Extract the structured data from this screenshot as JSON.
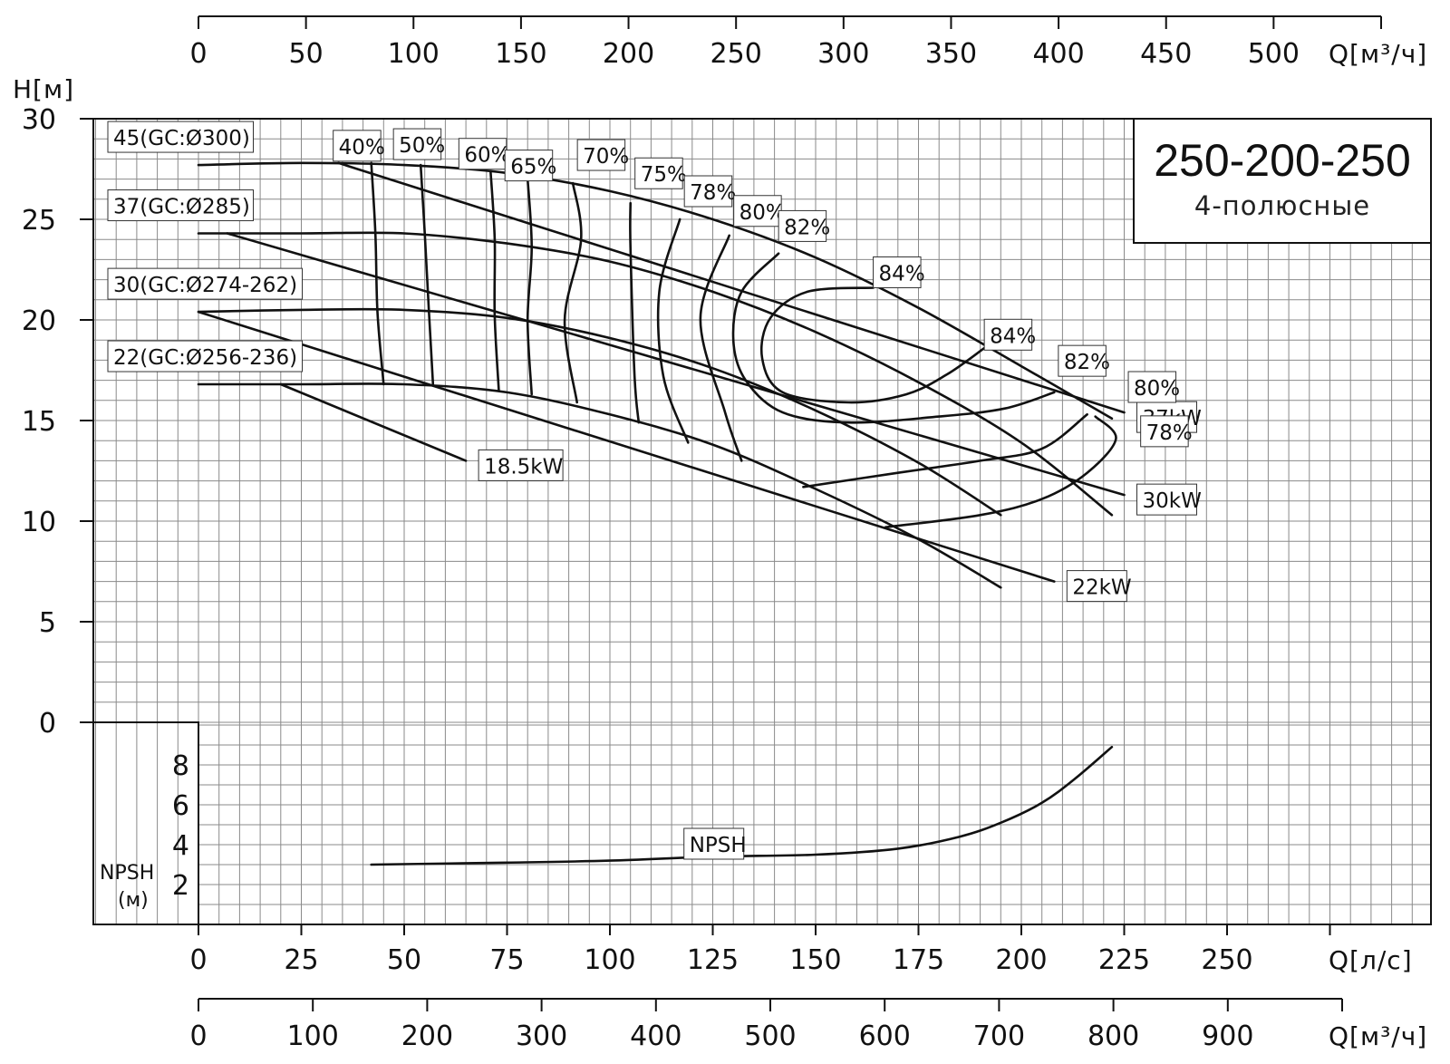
{
  "chart_data": {
    "type": "line",
    "title": "250-200-250",
    "subtitle": "4-полюсные",
    "ylabel": "H[м]",
    "npsh_label_line1": "NPSH",
    "npsh_label_line2": "(м)",
    "x_ls_label": "Q[л/с]",
    "x_m3h_label": "Q[м³/ч]",
    "x_top_label": "Q[м³/ч]",
    "ylim": [
      0,
      30
    ],
    "xlim_ls": [
      0,
      300
    ],
    "grid": true,
    "y_ticks": [
      "0",
      "5",
      "10",
      "15",
      "20",
      "25",
      "30"
    ],
    "npsh_ticks": [
      "2",
      "4",
      "6",
      "8"
    ],
    "x_ls_ticks": [
      "0",
      "25",
      "50",
      "75",
      "100",
      "125",
      "150",
      "175",
      "200",
      "225",
      "250"
    ],
    "x_m3h_ticks": [
      "0",
      "100",
      "200",
      "300",
      "400",
      "500",
      "600",
      "700",
      "800",
      "900"
    ],
    "x_top_ticks": [
      "0",
      "50",
      "100",
      "150",
      "200",
      "250",
      "300",
      "350",
      "400",
      "450",
      "500"
    ],
    "impellers": [
      {
        "name": "45(GC:Ø300)",
        "points": [
          [
            0,
            27.7
          ],
          [
            25,
            27.8
          ],
          [
            50,
            27.7
          ],
          [
            75,
            27.3
          ],
          [
            100,
            26.4
          ],
          [
            125,
            25.0
          ],
          [
            150,
            23.1
          ],
          [
            175,
            20.6
          ],
          [
            200,
            17.7
          ],
          [
            222,
            15.1
          ]
        ]
      },
      {
        "name": "37(GC:Ø285)",
        "points": [
          [
            0,
            24.3
          ],
          [
            25,
            24.3
          ],
          [
            50,
            24.3
          ],
          [
            75,
            23.8
          ],
          [
            100,
            22.9
          ],
          [
            125,
            21.4
          ],
          [
            150,
            19.4
          ],
          [
            175,
            16.9
          ],
          [
            200,
            13.9
          ],
          [
            222,
            10.3
          ]
        ]
      },
      {
        "name": "30(GC:Ø274-262)",
        "points": [
          [
            0,
            20.4
          ],
          [
            25,
            20.5
          ],
          [
            50,
            20.5
          ],
          [
            75,
            20.1
          ],
          [
            100,
            19.1
          ],
          [
            125,
            17.6
          ],
          [
            150,
            15.5
          ],
          [
            175,
            12.9
          ],
          [
            195,
            10.3
          ]
        ]
      },
      {
        "name": "22(GC:Ø256-236)",
        "points": [
          [
            0,
            16.8
          ],
          [
            25,
            16.8
          ],
          [
            50,
            16.8
          ],
          [
            75,
            16.4
          ],
          [
            100,
            15.3
          ],
          [
            125,
            13.8
          ],
          [
            150,
            11.6
          ],
          [
            175,
            9.1
          ],
          [
            195,
            6.7
          ]
        ]
      }
    ],
    "power_lines": [
      {
        "label": "37kW",
        "points": [
          [
            34,
            27.8
          ],
          [
            225,
            15.4
          ]
        ]
      },
      {
        "label": "30kW",
        "points": [
          [
            7,
            24.3
          ],
          [
            225,
            11.3
          ]
        ]
      },
      {
        "label": "22kW",
        "points": [
          [
            0,
            20.4
          ],
          [
            208,
            7.0
          ]
        ]
      },
      {
        "label": "18.5kW",
        "points": [
          [
            20,
            16.8
          ],
          [
            65,
            13.0
          ]
        ]
      }
    ],
    "efficiency_lines": [
      {
        "label": "40%",
        "points": [
          [
            42,
            27.8
          ],
          [
            43,
            24.3
          ],
          [
            43.5,
            20.4
          ],
          [
            45,
            16.8
          ]
        ]
      },
      {
        "label": "50%",
        "points": [
          [
            54,
            27.7
          ],
          [
            55,
            24.3
          ],
          [
            56,
            20.5
          ],
          [
            57,
            16.8
          ]
        ]
      },
      {
        "label": "60%",
        "points": [
          [
            71,
            27.4
          ],
          [
            72,
            24.0
          ],
          [
            72,
            20.2
          ],
          [
            73,
            16.5
          ]
        ]
      },
      {
        "label": "65%",
        "points": [
          [
            80,
            27.0
          ],
          [
            81,
            23.6
          ],
          [
            80,
            20.0
          ],
          [
            81,
            16.3
          ]
        ]
      },
      {
        "label": "70%",
        "points": [
          [
            91,
            26.8
          ],
          [
            93,
            24.0
          ],
          [
            89,
            20.0
          ],
          [
            92,
            15.9
          ]
        ]
      },
      {
        "label": "75%",
        "points": [
          [
            105,
            25.8
          ],
          [
            105,
            23.6
          ],
          [
            106,
            17.2
          ],
          [
            107,
            14.9
          ]
        ]
      },
      {
        "label": "78%",
        "points": [
          [
            117,
            25.0
          ],
          [
            112,
            21.4
          ],
          [
            113,
            17.2
          ],
          [
            119,
            13.9
          ]
        ]
      },
      {
        "label": "80%",
        "points": [
          [
            129,
            24.2
          ],
          [
            122,
            20.1
          ],
          [
            128,
            15.4
          ],
          [
            132,
            13.0
          ]
        ]
      }
    ],
    "eff_labels_upper": [
      {
        "label": "82%",
        "x": 141,
        "y": 23.9
      },
      {
        "label": "84%",
        "x": 164,
        "y": 21.6
      },
      {
        "label": "84%",
        "x": 191,
        "y": 18.5
      },
      {
        "label": "82%",
        "x": 209,
        "y": 17.2
      },
      {
        "label": "80%",
        "x": 226,
        "y": 15.9
      },
      {
        "label": "78%",
        "x": 229,
        "y": 13.7
      }
    ],
    "contours": [
      {
        "label": "82%",
        "points": [
          [
            141,
            23.3
          ],
          [
            132,
            21.4
          ],
          [
            130,
            19.0
          ],
          [
            133,
            17.0
          ],
          [
            142,
            15.4
          ],
          [
            158,
            14.9
          ],
          [
            180,
            15.2
          ],
          [
            196,
            15.6
          ],
          [
            208,
            16.4
          ]
        ]
      },
      {
        "label": "84%",
        "points": [
          [
            164,
            21.6
          ],
          [
            148,
            21.4
          ],
          [
            139,
            20.1
          ],
          [
            137,
            18.1
          ],
          [
            142,
            16.4
          ],
          [
            158,
            15.9
          ],
          [
            172,
            16.3
          ],
          [
            182,
            17.3
          ],
          [
            191,
            18.6
          ]
        ]
      },
      {
        "label": "80%",
        "points": [
          [
            147,
            11.7
          ],
          [
            170,
            12.4
          ],
          [
            190,
            13.0
          ],
          [
            205,
            13.6
          ],
          [
            216,
            15.3
          ]
        ]
      },
      {
        "label": "78%",
        "points": [
          [
            167,
            9.7
          ],
          [
            190,
            10.3
          ],
          [
            205,
            11.1
          ],
          [
            216,
            12.4
          ],
          [
            223,
            14.1
          ],
          [
            218,
            15.2
          ]
        ]
      }
    ],
    "npsh": {
      "label": "NPSH",
      "ylim": [
        0,
        10
      ],
      "points": [
        [
          42,
          3.0
        ],
        [
          75,
          3.1
        ],
        [
          100,
          3.2
        ],
        [
          125,
          3.4
        ],
        [
          150,
          3.5
        ],
        [
          170,
          3.8
        ],
        [
          185,
          4.4
        ],
        [
          195,
          5.1
        ],
        [
          205,
          6.1
        ],
        [
          213,
          7.3
        ],
        [
          222,
          8.9
        ]
      ]
    }
  }
}
